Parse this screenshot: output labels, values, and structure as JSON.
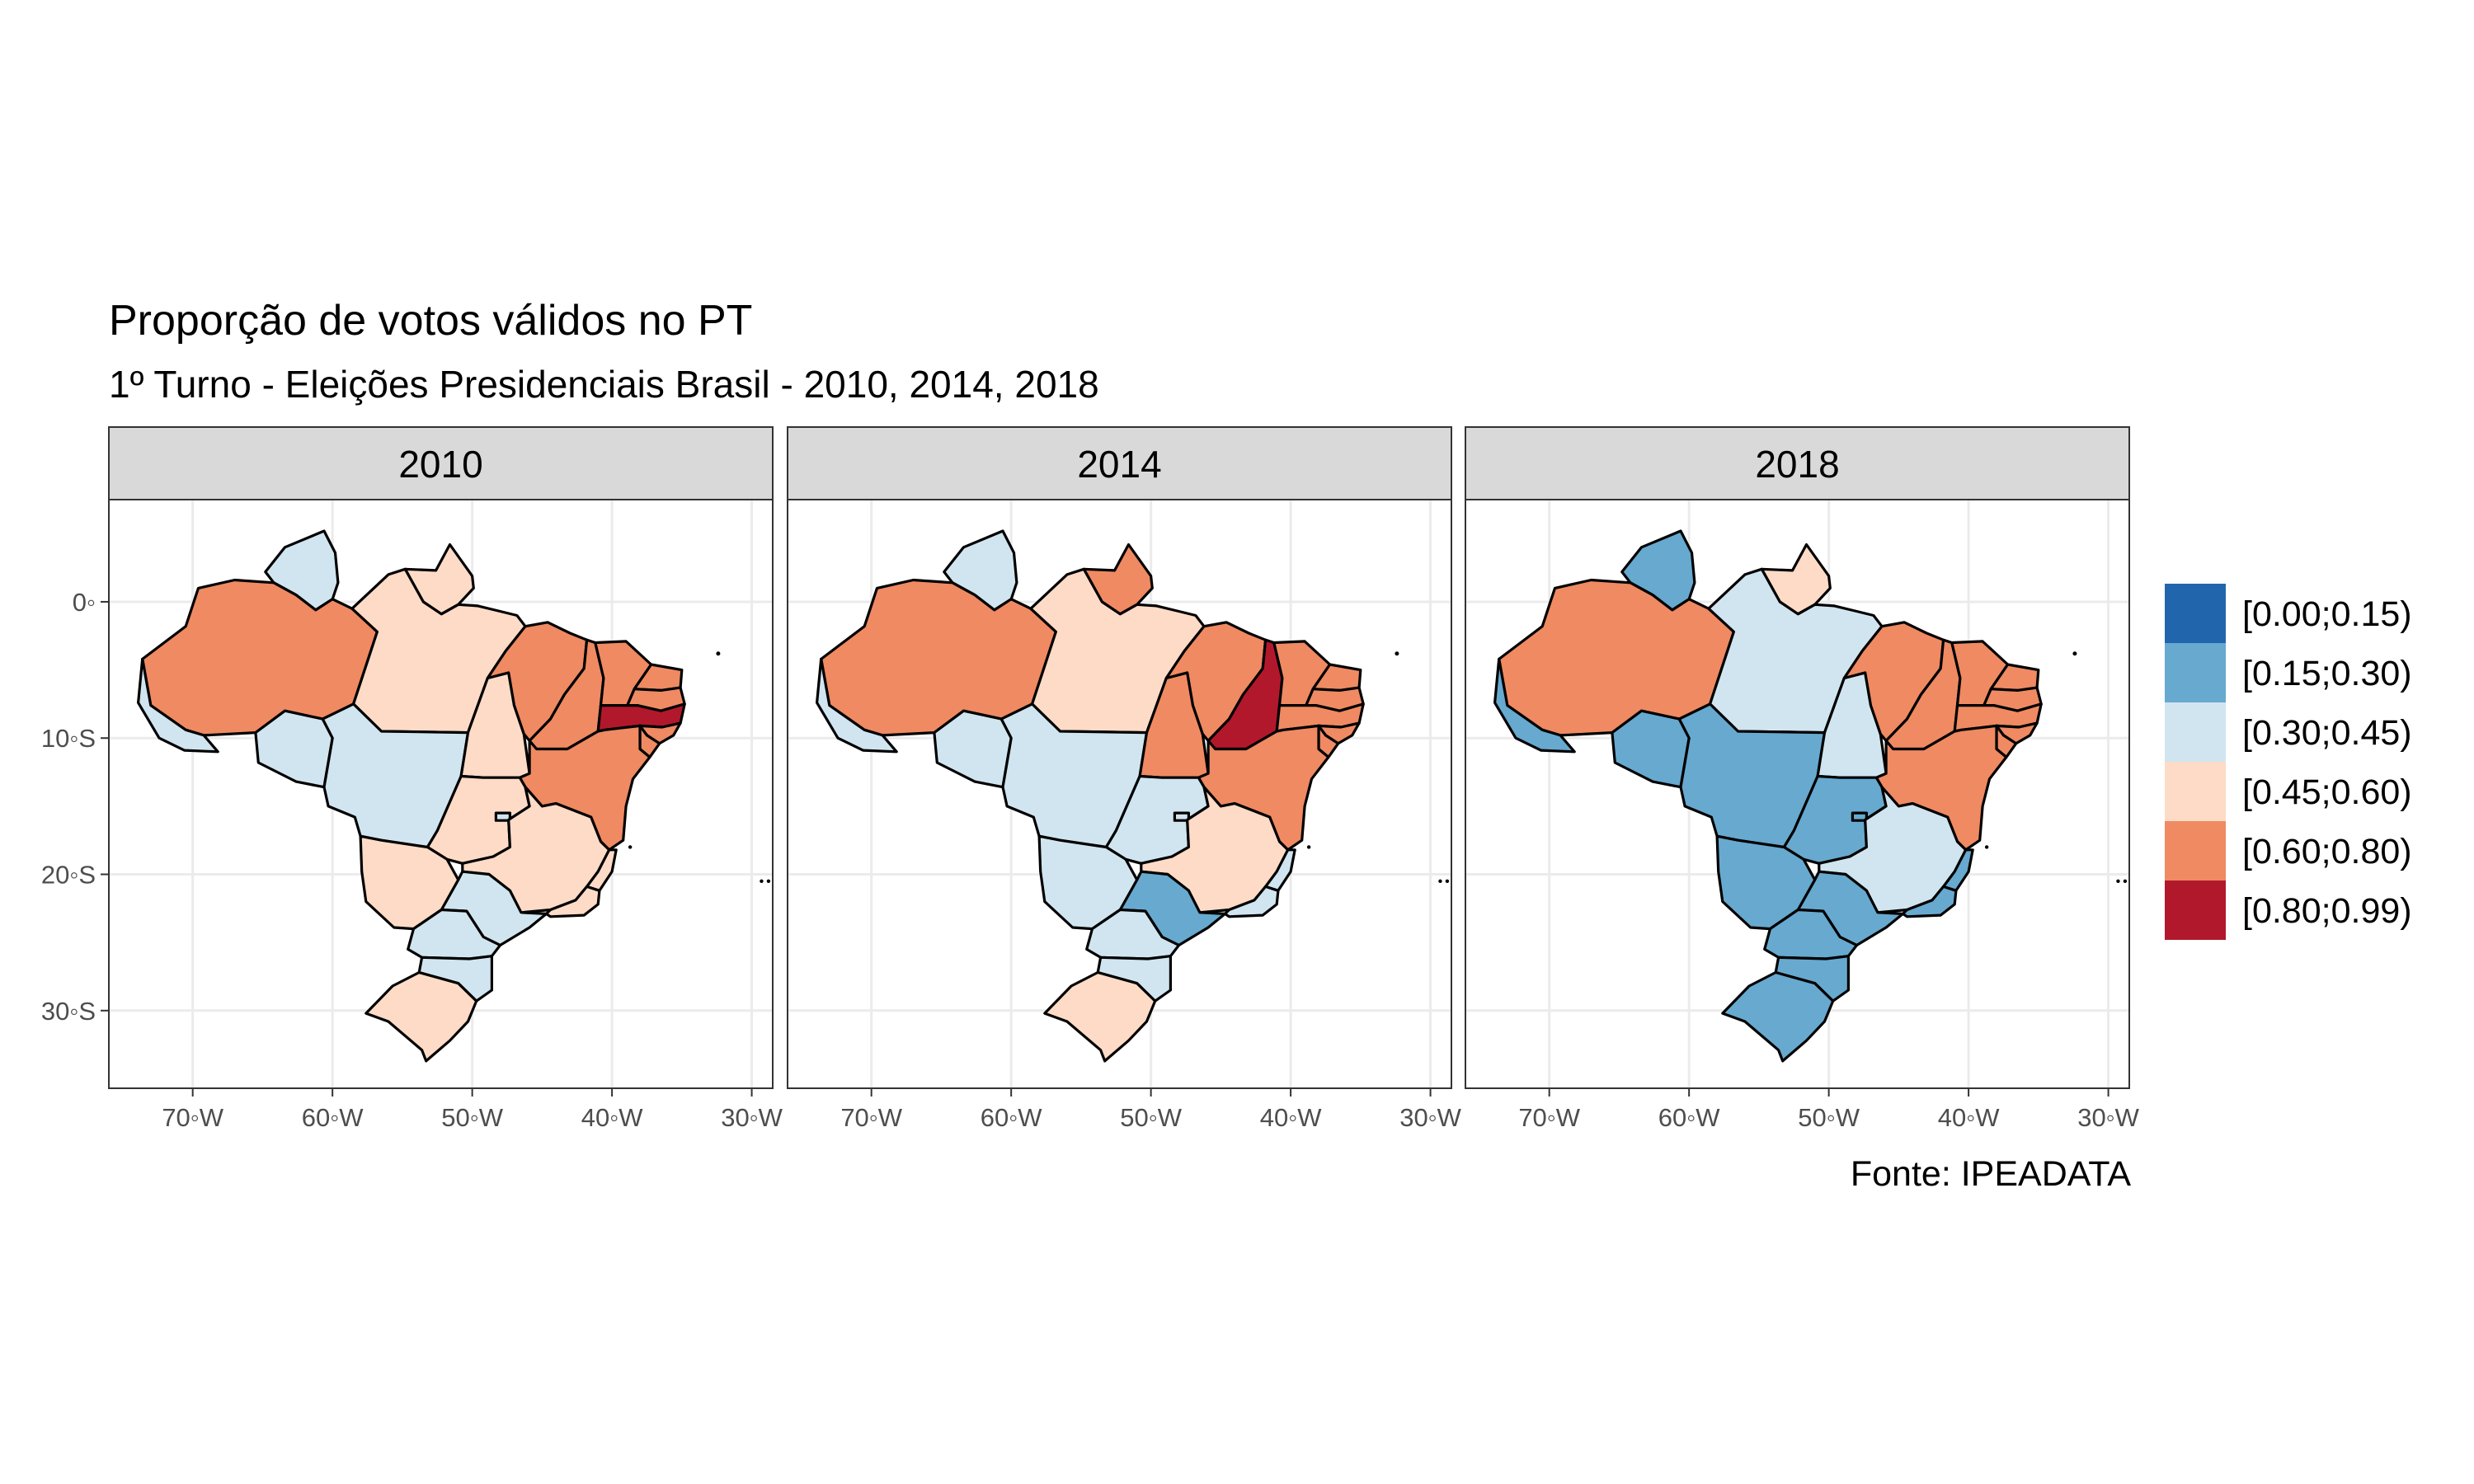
{
  "title": "Proporção de votos válidos no PT",
  "subtitle": "1º Turno - Eleições Presidenciais Brasil - 2010, 2014, 2018",
  "caption": "Fonte: IPEADATA",
  "facets": [
    "2010",
    "2014",
    "2018"
  ],
  "x_ticks": [
    "70◦W",
    "60◦W",
    "50◦W",
    "40◦W",
    "30◦W"
  ],
  "y_ticks": [
    "0◦",
    "10◦S",
    "20◦S",
    "30◦S"
  ],
  "legend": [
    {
      "label": "[0.00;0.15)",
      "color": "#2166ac"
    },
    {
      "label": "[0.15;0.30)",
      "color": "#67a9cf"
    },
    {
      "label": "[0.30;0.45)",
      "color": "#d1e5f0"
    },
    {
      "label": "[0.45;0.60)",
      "color": "#fddbc7"
    },
    {
      "label": "[0.60;0.80)",
      "color": "#ef8a62"
    },
    {
      "label": "[0.80;0.99)",
      "color": "#b2182b"
    }
  ],
  "colors": {
    "strip_fill": "#d9d9d9",
    "grid": "#ebebeb",
    "panel_border": "#333333",
    "state_border": "#000000"
  },
  "chart_data": {
    "type": "choropleth",
    "x_range_lon": [
      -76,
      -28.5
    ],
    "y_range_lat": [
      -35.7,
      7.5
    ],
    "grid": true,
    "legend_position": "right",
    "state_classes": [
      {
        "year": "2010",
        "values": {
          "AM": "[0.60;0.80)",
          "PA": "[0.45;0.60)",
          "RR": "[0.30;0.45)",
          "AP": "[0.45;0.60)",
          "AC": "[0.30;0.45)",
          "RO": "[0.30;0.45)",
          "MT": "[0.30;0.45)",
          "TO": "[0.45;0.60)",
          "MA": "[0.60;0.80)",
          "PI": "[0.60;0.80)",
          "CE": "[0.60;0.80)",
          "RN": "[0.60;0.80)",
          "PB": "[0.60;0.80)",
          "PE": "[0.80;0.99)",
          "AL": "[0.60;0.80)",
          "SE": "[0.60;0.80)",
          "BA": "[0.60;0.80)",
          "GO": "[0.45;0.60)",
          "DF": "[0.30;0.45)",
          "MG": "[0.45;0.60)",
          "ES": "[0.45;0.60)",
          "RJ": "[0.45;0.60)",
          "SP": "[0.30;0.45)",
          "MS": "[0.45;0.60)",
          "PR": "[0.30;0.45)",
          "SC": "[0.30;0.45)",
          "RS": "[0.45;0.60)"
        }
      },
      {
        "year": "2014",
        "values": {
          "AM": "[0.60;0.80)",
          "PA": "[0.45;0.60)",
          "RR": "[0.30;0.45)",
          "AP": "[0.60;0.80)",
          "AC": "[0.30;0.45)",
          "RO": "[0.30;0.45)",
          "MT": "[0.30;0.45)",
          "TO": "[0.60;0.80)",
          "MA": "[0.60;0.80)",
          "PI": "[0.80;0.99)",
          "CE": "[0.60;0.80)",
          "RN": "[0.60;0.80)",
          "PB": "[0.60;0.80)",
          "PE": "[0.60;0.80)",
          "AL": "[0.60;0.80)",
          "SE": "[0.60;0.80)",
          "BA": "[0.60;0.80)",
          "GO": "[0.30;0.45)",
          "DF": "[0.30;0.45)",
          "MG": "[0.45;0.60)",
          "ES": "[0.30;0.45)",
          "RJ": "[0.30;0.45)",
          "SP": "[0.15;0.30)",
          "MS": "[0.30;0.45)",
          "PR": "[0.30;0.45)",
          "SC": "[0.30;0.45)",
          "RS": "[0.45;0.60)"
        }
      },
      {
        "year": "2018",
        "values": {
          "AM": "[0.60;0.80)",
          "PA": "[0.30;0.45)",
          "RR": "[0.15;0.30)",
          "AP": "[0.45;0.60)",
          "AC": "[0.15;0.30)",
          "RO": "[0.15;0.30)",
          "MT": "[0.15;0.30)",
          "TO": "[0.30;0.45)",
          "MA": "[0.60;0.80)",
          "PI": "[0.60;0.80)",
          "CE": "[0.60;0.80)",
          "RN": "[0.60;0.80)",
          "PB": "[0.60;0.80)",
          "PE": "[0.60;0.80)",
          "AL": "[0.60;0.80)",
          "SE": "[0.60;0.80)",
          "BA": "[0.60;0.80)",
          "GO": "[0.15;0.30)",
          "DF": "[0.15;0.30)",
          "MG": "[0.30;0.45)",
          "ES": "[0.15;0.30)",
          "RJ": "[0.15;0.30)",
          "SP": "[0.15;0.30)",
          "MS": "[0.15;0.30)",
          "PR": "[0.15;0.30)",
          "SC": "[0.15;0.30)",
          "RS": "[0.15;0.30)"
        }
      }
    ]
  }
}
